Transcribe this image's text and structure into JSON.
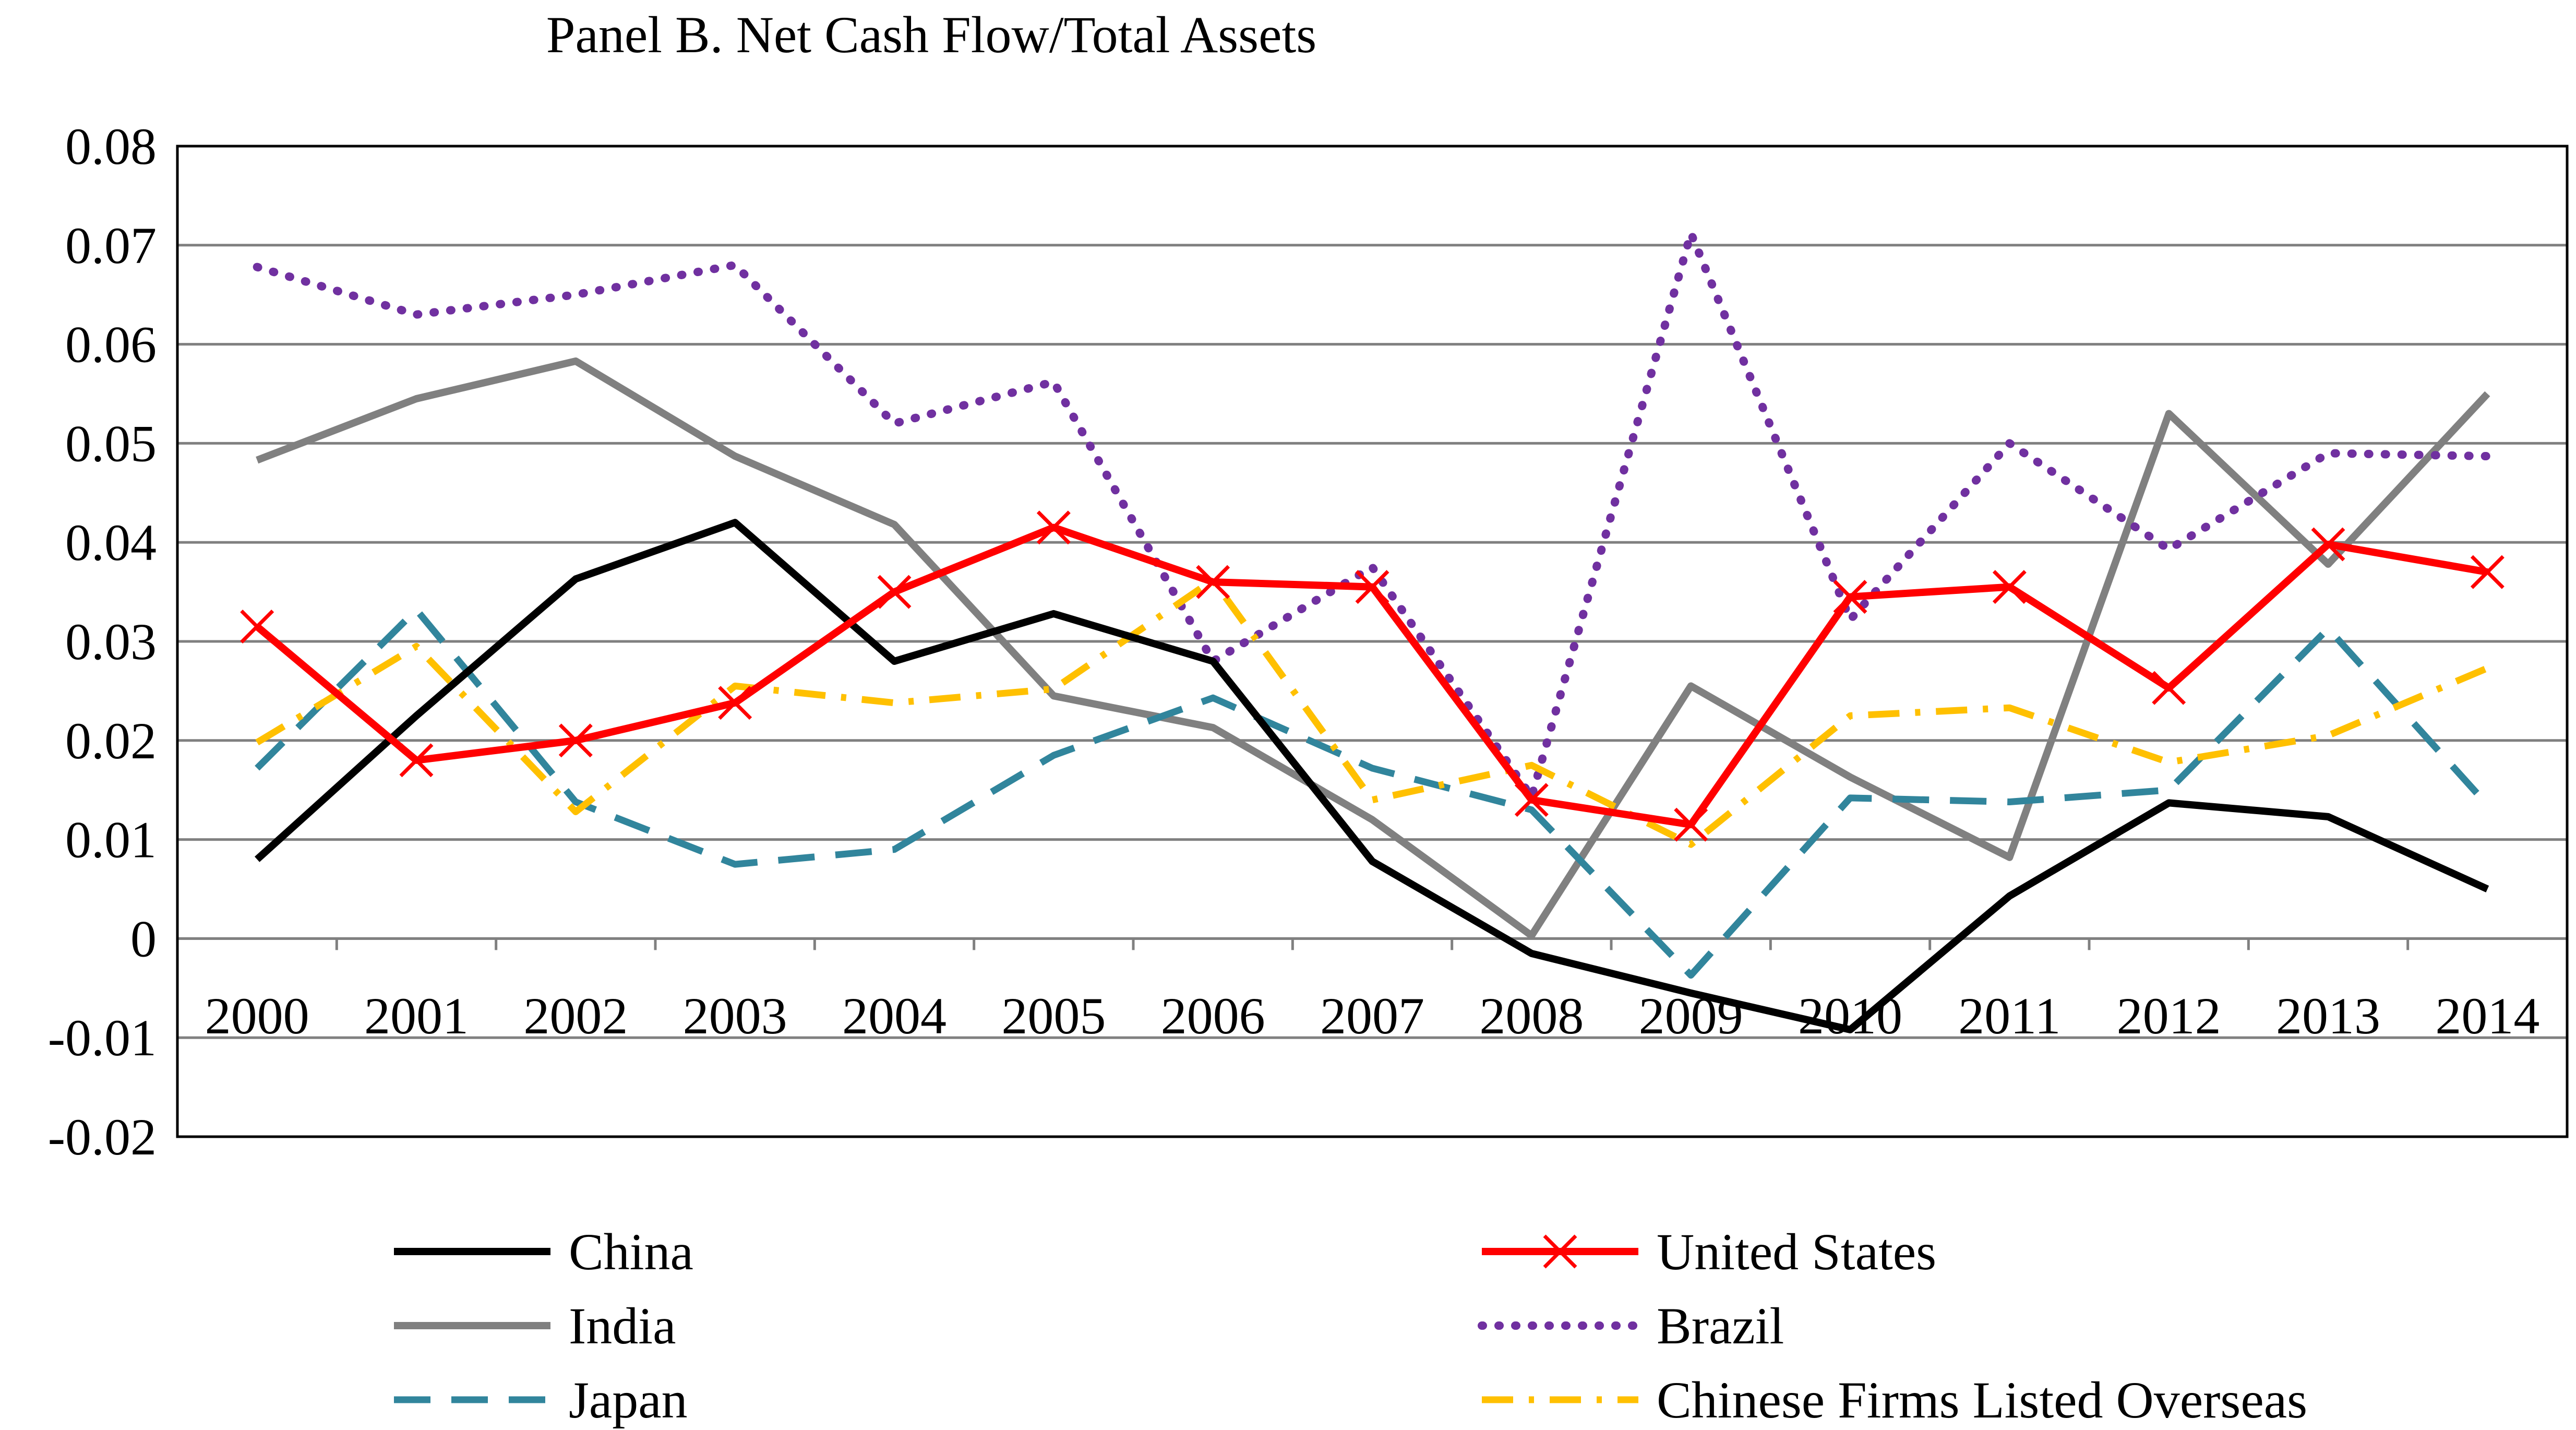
{
  "chart_data": {
    "type": "line",
    "title": "Panel B. Net Cash Flow/Total Assets",
    "xlabel": "",
    "ylabel": "",
    "categories": [
      "2000",
      "2001",
      "2002",
      "2003",
      "2004",
      "2005",
      "2006",
      "2007",
      "2008",
      "2009",
      "2010",
      "2011",
      "2012",
      "2013",
      "2014"
    ],
    "ylim": [
      -0.02,
      0.08
    ],
    "yticks": [
      0.08,
      0.07,
      0.06,
      0.05,
      0.04,
      0.03,
      0.02,
      0.01,
      0,
      -0.01,
      -0.02
    ],
    "ytick_labels": [
      "0.08",
      "0.07",
      "0.06",
      "0.05",
      "0.04",
      "0.03",
      "0.02",
      "0.01",
      "0",
      "-0.01",
      "-0.02"
    ],
    "grid": true,
    "legend_placement": "bottom",
    "series": [
      {
        "name": "China",
        "color": "#000000",
        "style": "solid",
        "values": [
          0.008,
          0.0225,
          0.0363,
          0.042,
          0.028,
          0.0328,
          0.028,
          0.0078,
          -0.0015,
          -0.0055,
          -0.0092,
          0.0043,
          0.0137,
          0.0123,
          0.005
        ]
      },
      {
        "name": "United States",
        "color": "#ff0000",
        "style": "solid-x",
        "values": [
          0.0315,
          0.018,
          0.02,
          0.0238,
          0.035,
          0.0415,
          0.036,
          0.0355,
          0.014,
          0.0115,
          0.0345,
          0.0355,
          0.0253,
          0.0398,
          0.037
        ]
      },
      {
        "name": "India",
        "color": "#808080",
        "style": "solid",
        "values": [
          0.0483,
          0.0545,
          0.0583,
          0.0487,
          0.0418,
          0.0245,
          0.0213,
          0.012,
          0.0003,
          0.0255,
          0.0163,
          0.0082,
          0.053,
          0.0378,
          0.055
        ]
      },
      {
        "name": "Brazil",
        "color": "#7030a0",
        "style": "dotted",
        "values": [
          0.0678,
          0.063,
          0.065,
          0.068,
          0.052,
          0.0562,
          0.028,
          0.0375,
          0.0143,
          0.0712,
          0.0322,
          0.05,
          0.0393,
          0.049,
          0.0487
        ]
      },
      {
        "name": "Japan",
        "color": "#31859c",
        "style": "dashed",
        "values": [
          0.0172,
          0.0332,
          0.0138,
          0.0075,
          0.009,
          0.0185,
          0.0243,
          0.0172,
          0.013,
          -0.0037,
          0.0142,
          0.0138,
          0.015,
          0.0313,
          0.0135
        ]
      },
      {
        "name": "Chinese Firms Listed Overseas",
        "color": "#ffc000",
        "style": "dashdot",
        "values": [
          0.0198,
          0.0295,
          0.0128,
          0.0255,
          0.0238,
          0.0252,
          0.0362,
          0.014,
          0.0175,
          0.0095,
          0.0225,
          0.0233,
          0.0178,
          0.0205,
          0.0273
        ]
      }
    ]
  }
}
